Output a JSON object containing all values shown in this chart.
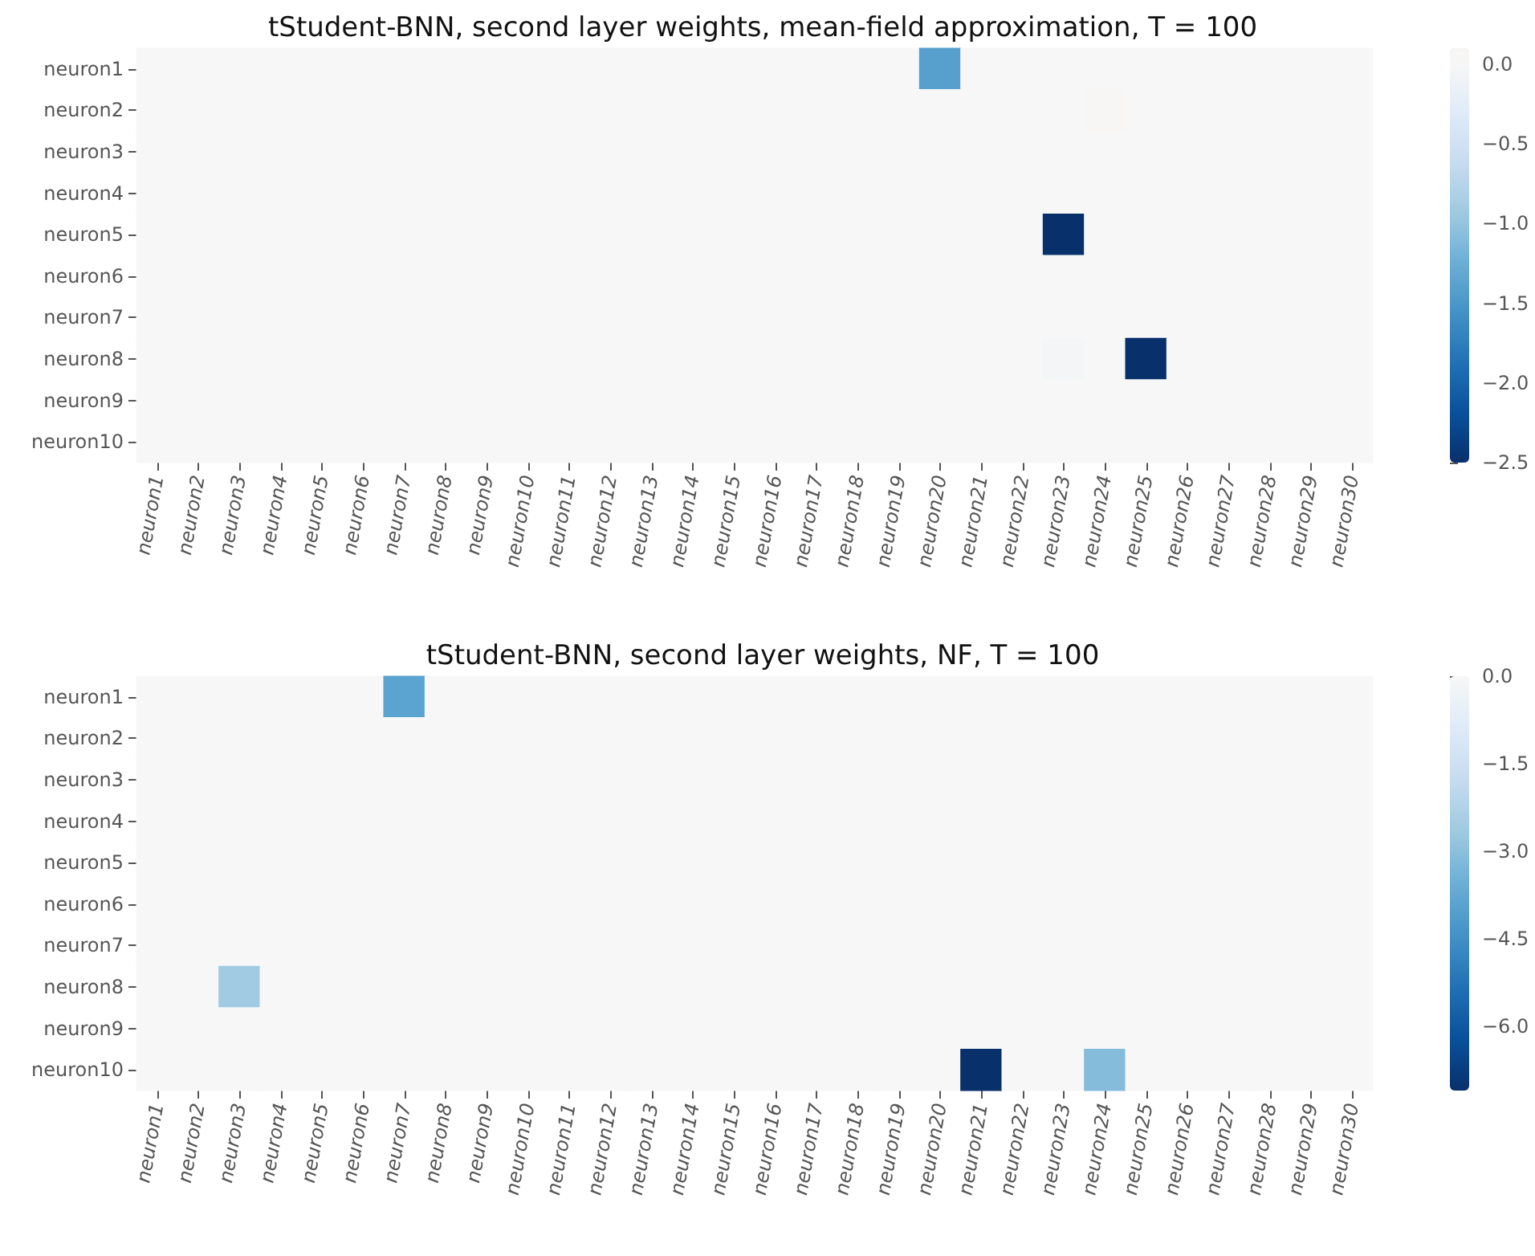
{
  "chart_data": [
    {
      "type": "heatmap",
      "title": "tStudent-BNN, second layer weights, mean-field approximation, T = 100",
      "categories": [
        "neuron1",
        "neuron2",
        "neuron3",
        "neuron4",
        "neuron5",
        "neuron6",
        "neuron7",
        "neuron8",
        "neuron9",
        "neuron10",
        "neuron11",
        "neuron12",
        "neuron13",
        "neuron14",
        "neuron15",
        "neuron16",
        "neuron17",
        "neuron18",
        "neuron19",
        "neuron20",
        "neuron21",
        "neuron22",
        "neuron23",
        "neuron24",
        "neuron25",
        "neuron26",
        "neuron27",
        "neuron28",
        "neuron29",
        "neuron30"
      ],
      "y_categories": [
        "neuron1",
        "neuron2",
        "neuron3",
        "neuron4",
        "neuron5",
        "neuron6",
        "neuron7",
        "neuron8",
        "neuron9",
        "neuron10"
      ],
      "cells": [
        [
          0,
          0,
          0,
          0,
          0,
          0,
          0,
          0,
          0,
          0,
          0,
          0,
          0,
          0,
          0,
          0,
          0,
          0,
          0,
          -1.4,
          0,
          0,
          0,
          0,
          0,
          0,
          0,
          0,
          0,
          0
        ],
        [
          0,
          0,
          0,
          0,
          0,
          0,
          0,
          0,
          0,
          0,
          0,
          0,
          0,
          0,
          0,
          0,
          0,
          0,
          0,
          0,
          0,
          0,
          0,
          0.05,
          0,
          0,
          0,
          0,
          0,
          0
        ],
        [
          0,
          0,
          0,
          0,
          0,
          0,
          0,
          0,
          0,
          0,
          0,
          0,
          0,
          0,
          0,
          0,
          0,
          0,
          0,
          0,
          0,
          0,
          0,
          0,
          0,
          0,
          0,
          0,
          0,
          0
        ],
        [
          0,
          0,
          0,
          0,
          0,
          0,
          0,
          0,
          0,
          0,
          0,
          0,
          0,
          0,
          0,
          0,
          0,
          0,
          0,
          0,
          0,
          0,
          0,
          0,
          0,
          0,
          0,
          0,
          0,
          0
        ],
        [
          0,
          0,
          0,
          0,
          0,
          0,
          0,
          0,
          0,
          0,
          0,
          0,
          0,
          0,
          0,
          0,
          0,
          0,
          0,
          0,
          0,
          0,
          -2.5,
          0,
          0,
          0,
          0,
          0,
          0,
          0
        ],
        [
          0,
          0,
          0,
          0,
          0,
          0,
          0,
          0,
          0,
          0,
          0,
          0,
          0,
          0,
          0,
          0,
          0,
          0,
          0,
          0,
          0,
          0,
          0,
          0,
          0,
          0,
          0,
          0,
          0,
          0
        ],
        [
          0,
          0,
          0,
          0,
          0,
          0,
          0,
          0,
          0,
          0,
          0,
          0,
          0,
          0,
          0,
          0,
          0,
          0,
          0,
          0,
          0,
          0,
          0,
          0,
          0,
          0,
          0,
          0,
          0,
          0
        ],
        [
          0,
          0,
          0,
          0,
          0,
          0,
          0,
          0,
          0,
          0,
          0,
          0,
          0,
          0,
          0,
          0,
          0,
          0,
          0,
          0,
          0,
          0,
          -0.05,
          0,
          -2.5,
          0,
          0,
          0,
          0,
          0
        ],
        [
          0,
          0,
          0,
          0,
          0,
          0,
          0,
          0,
          0,
          0,
          0,
          0,
          0,
          0,
          0,
          0,
          0,
          0,
          0,
          0,
          0,
          0,
          0,
          0,
          0,
          0,
          0,
          0,
          0,
          0
        ],
        [
          0,
          0,
          0,
          0,
          0,
          0,
          0,
          0,
          0,
          0,
          0,
          0,
          0,
          0,
          0,
          0,
          0,
          0,
          0,
          0,
          0,
          0,
          0,
          0,
          0,
          0,
          0,
          0,
          0,
          0
        ]
      ],
      "clim": [
        -2.5,
        0.1
      ],
      "cticks": [
        {
          "value": 0,
          "label": "0.0"
        },
        {
          "value": -0.5,
          "label": "−0.5"
        },
        {
          "value": -1,
          "label": "−1.0"
        },
        {
          "value": -1.5,
          "label": "−1.5"
        },
        {
          "value": -2,
          "label": "−2.0"
        },
        {
          "value": -2.5,
          "label": "−2.5"
        }
      ]
    },
    {
      "type": "heatmap",
      "title": "tStudent-BNN, second layer weights, NF, T = 100",
      "categories": [
        "neuron1",
        "neuron2",
        "neuron3",
        "neuron4",
        "neuron5",
        "neuron6",
        "neuron7",
        "neuron8",
        "neuron9",
        "neuron10",
        "neuron11",
        "neuron12",
        "neuron13",
        "neuron14",
        "neuron15",
        "neuron16",
        "neuron17",
        "neuron18",
        "neuron19",
        "neuron20",
        "neuron21",
        "neuron22",
        "neuron23",
        "neuron24",
        "neuron25",
        "neuron26",
        "neuron27",
        "neuron28",
        "neuron29",
        "neuron30"
      ],
      "y_categories": [
        "neuron1",
        "neuron2",
        "neuron3",
        "neuron4",
        "neuron5",
        "neuron6",
        "neuron7",
        "neuron8",
        "neuron9",
        "neuron10"
      ],
      "cells": [
        [
          0,
          0,
          0,
          0,
          0,
          0,
          -3.9,
          0,
          0,
          0,
          0,
          0,
          0,
          0,
          0,
          0,
          0,
          0,
          0,
          0,
          0,
          0,
          0,
          0,
          0,
          0,
          0,
          0,
          0,
          0
        ],
        [
          0,
          0,
          0,
          0,
          0,
          0,
          0,
          0,
          0,
          0,
          0,
          0,
          0,
          0,
          0,
          0,
          0,
          0,
          0,
          0,
          0,
          0,
          0,
          0,
          0,
          0,
          0,
          0,
          0,
          0
        ],
        [
          0,
          0,
          0,
          0,
          0,
          0,
          0,
          0,
          0,
          0,
          0,
          0,
          0,
          0,
          0,
          0,
          0,
          0,
          0,
          0,
          0,
          0,
          0,
          0,
          0,
          0,
          0,
          0,
          0,
          0
        ],
        [
          0,
          0,
          0,
          0,
          0,
          0,
          0,
          0,
          0,
          0,
          0,
          0,
          0,
          0,
          0,
          0,
          0,
          0,
          0,
          0,
          0,
          0,
          0,
          0,
          0,
          0,
          0,
          0,
          0,
          0
        ],
        [
          0,
          0,
          0,
          0,
          0,
          0,
          0,
          0,
          0,
          0,
          0,
          0,
          0,
          0,
          0,
          0,
          0,
          0,
          0,
          0,
          0,
          0,
          0,
          0,
          0,
          0,
          0,
          0,
          0,
          0
        ],
        [
          0,
          0,
          0,
          0,
          0,
          0,
          0,
          0,
          0,
          0,
          0,
          0,
          0,
          0,
          0,
          0,
          0,
          0,
          0,
          0,
          0,
          0,
          0,
          0,
          0,
          0,
          0,
          0,
          0,
          0
        ],
        [
          0,
          0,
          0,
          0,
          0,
          0,
          0,
          0,
          0,
          0,
          0,
          0,
          0,
          0,
          0,
          0,
          0,
          0,
          0,
          0,
          0,
          0,
          0,
          0,
          0,
          0,
          0,
          0,
          0,
          0
        ],
        [
          0,
          0,
          -2.6,
          0,
          0,
          0,
          0,
          0,
          0,
          0,
          0,
          0,
          0,
          0,
          0,
          0,
          0,
          0,
          0,
          0,
          0,
          0,
          0,
          0,
          0,
          0,
          0,
          0,
          0,
          0
        ],
        [
          0,
          0,
          0,
          0,
          0,
          0,
          0,
          0,
          0,
          0,
          0,
          0,
          0,
          0,
          0,
          0,
          0,
          0,
          0,
          0,
          0,
          0,
          0,
          0,
          0,
          0,
          0,
          0,
          0,
          0
        ],
        [
          0,
          0,
          0,
          0,
          0,
          0,
          0,
          0,
          0,
          0,
          0,
          0,
          0,
          0,
          0,
          0,
          0,
          0,
          0,
          0,
          -7.1,
          0,
          0,
          -3.1,
          0,
          0,
          0,
          0,
          0,
          0
        ]
      ],
      "clim": [
        -7.1,
        0
      ],
      "cticks": [
        {
          "value": 0,
          "label": "0.0"
        },
        {
          "value": -1.5,
          "label": "−1.5"
        },
        {
          "value": -3,
          "label": "−3.0"
        },
        {
          "value": -4.5,
          "label": "−4.5"
        },
        {
          "value": -6,
          "label": "−6.0"
        }
      ]
    }
  ]
}
